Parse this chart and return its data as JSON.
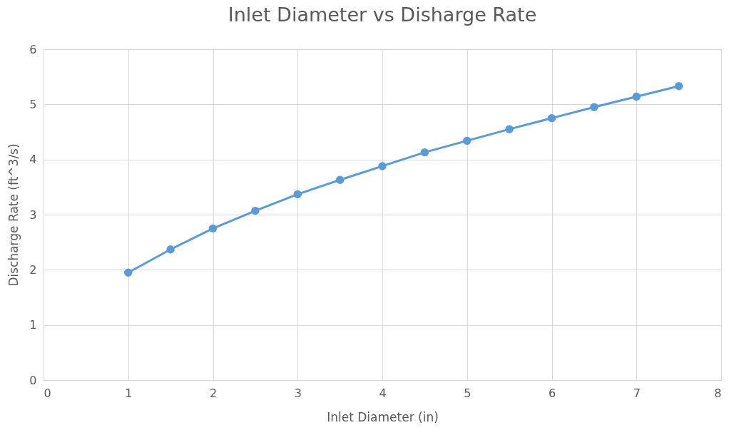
{
  "chart_data": {
    "type": "line",
    "title": "Inlet Diameter vs Disharge Rate",
    "xlabel": "Inlet Diameter (in)",
    "ylabel": "Discharge Rate (ft^3/s)",
    "x": [
      1,
      1.5,
      2,
      2.5,
      3,
      3.5,
      4,
      4.5,
      5,
      5.5,
      6,
      6.5,
      7,
      7.5
    ],
    "series": [
      {
        "color": "#5b9bd5",
        "values": [
          1.95,
          2.37,
          2.75,
          3.07,
          3.37,
          3.63,
          3.88,
          4.13,
          4.34,
          4.55,
          4.75,
          4.95,
          5.14,
          5.33
        ]
      }
    ],
    "xlim": [
      0,
      8
    ],
    "xticks": [
      0,
      1,
      2,
      3,
      4,
      5,
      6,
      7,
      8
    ],
    "ylim": [
      0,
      6
    ],
    "yticks": [
      0,
      1,
      2,
      3,
      4,
      5,
      6
    ],
    "grid": true,
    "marker": "circle",
    "line_style": "solid"
  }
}
